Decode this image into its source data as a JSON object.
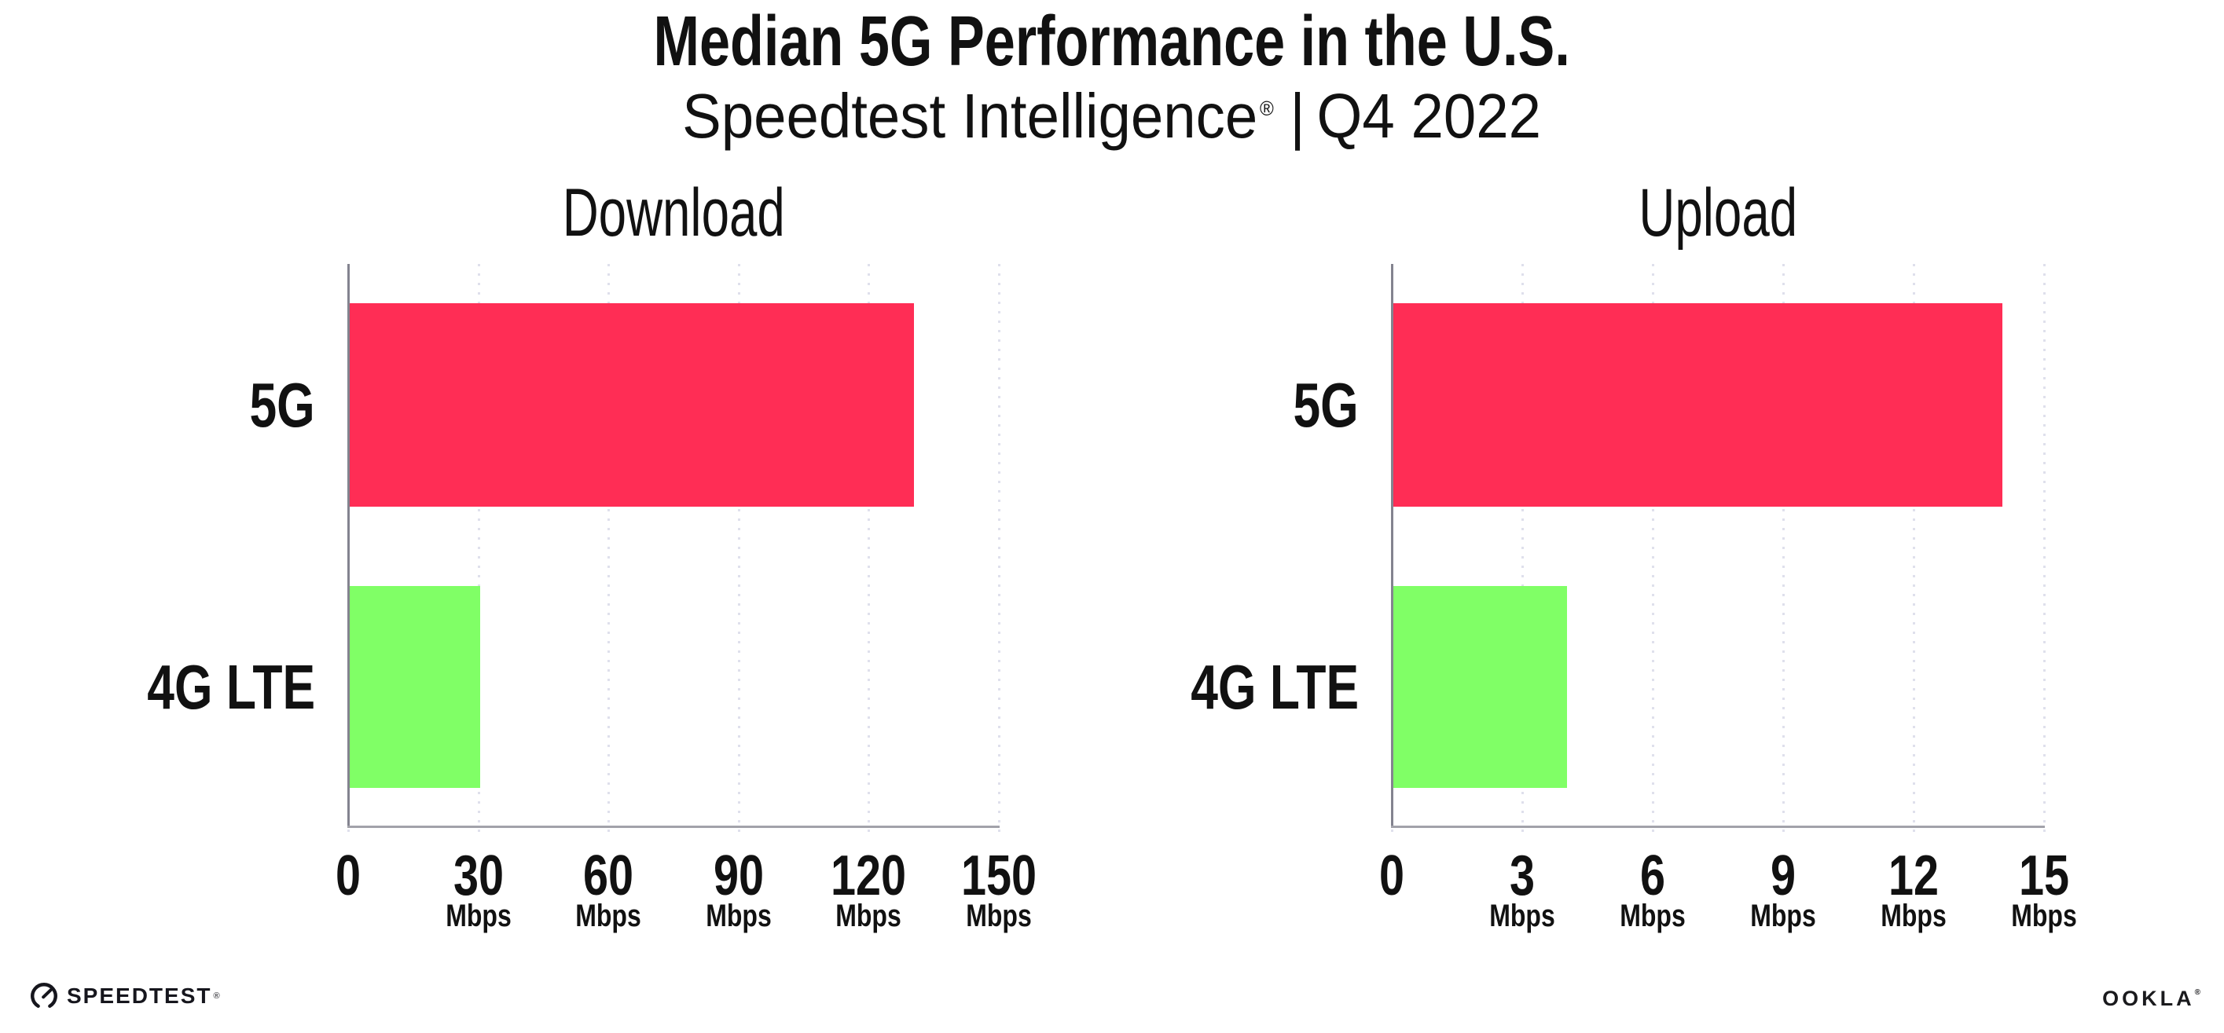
{
  "header": {
    "title": "Median 5G Performance in the U.S.",
    "subtitle_brand": "Speedtest Intelligence",
    "subtitle_reg": "®",
    "subtitle_divider": "|",
    "subtitle_period": "Q4 2022"
  },
  "chart_data": [
    {
      "type": "bar",
      "orientation": "horizontal",
      "title": "Download",
      "categories": [
        "5G",
        "4G LTE"
      ],
      "values": [
        130,
        30
      ],
      "unit": "Mbps",
      "xlim": [
        0,
        150
      ],
      "xticks": [
        0,
        30,
        60,
        90,
        120,
        150
      ],
      "xtick_unit": "Mbps",
      "bar_colors": [
        "#FF2D55",
        "#80FF66"
      ],
      "grid": "vertical-dotted",
      "legend_position": "none"
    },
    {
      "type": "bar",
      "orientation": "horizontal",
      "title": "Upload",
      "categories": [
        "5G",
        "4G LTE"
      ],
      "values": [
        14,
        4
      ],
      "unit": "Mbps",
      "xlim": [
        0,
        15
      ],
      "xticks": [
        0,
        3,
        6,
        9,
        12,
        15
      ],
      "xtick_unit": "Mbps",
      "bar_colors": [
        "#FF2D55",
        "#80FF66"
      ],
      "grid": "vertical-dotted",
      "legend_position": "none"
    }
  ],
  "footer": {
    "speedtest_label": "SPEEDTEST",
    "speedtest_mark": "®",
    "ookla_label": "OOKLA",
    "ookla_mark": "®"
  },
  "colors": {
    "bar_5g": "#FF2D55",
    "bar_4g_lte": "#80FF66",
    "y_axis": "#83838f",
    "x_axis": "#a2a2aa",
    "grid_dot": "#dfe0ec",
    "text": "#111111"
  }
}
